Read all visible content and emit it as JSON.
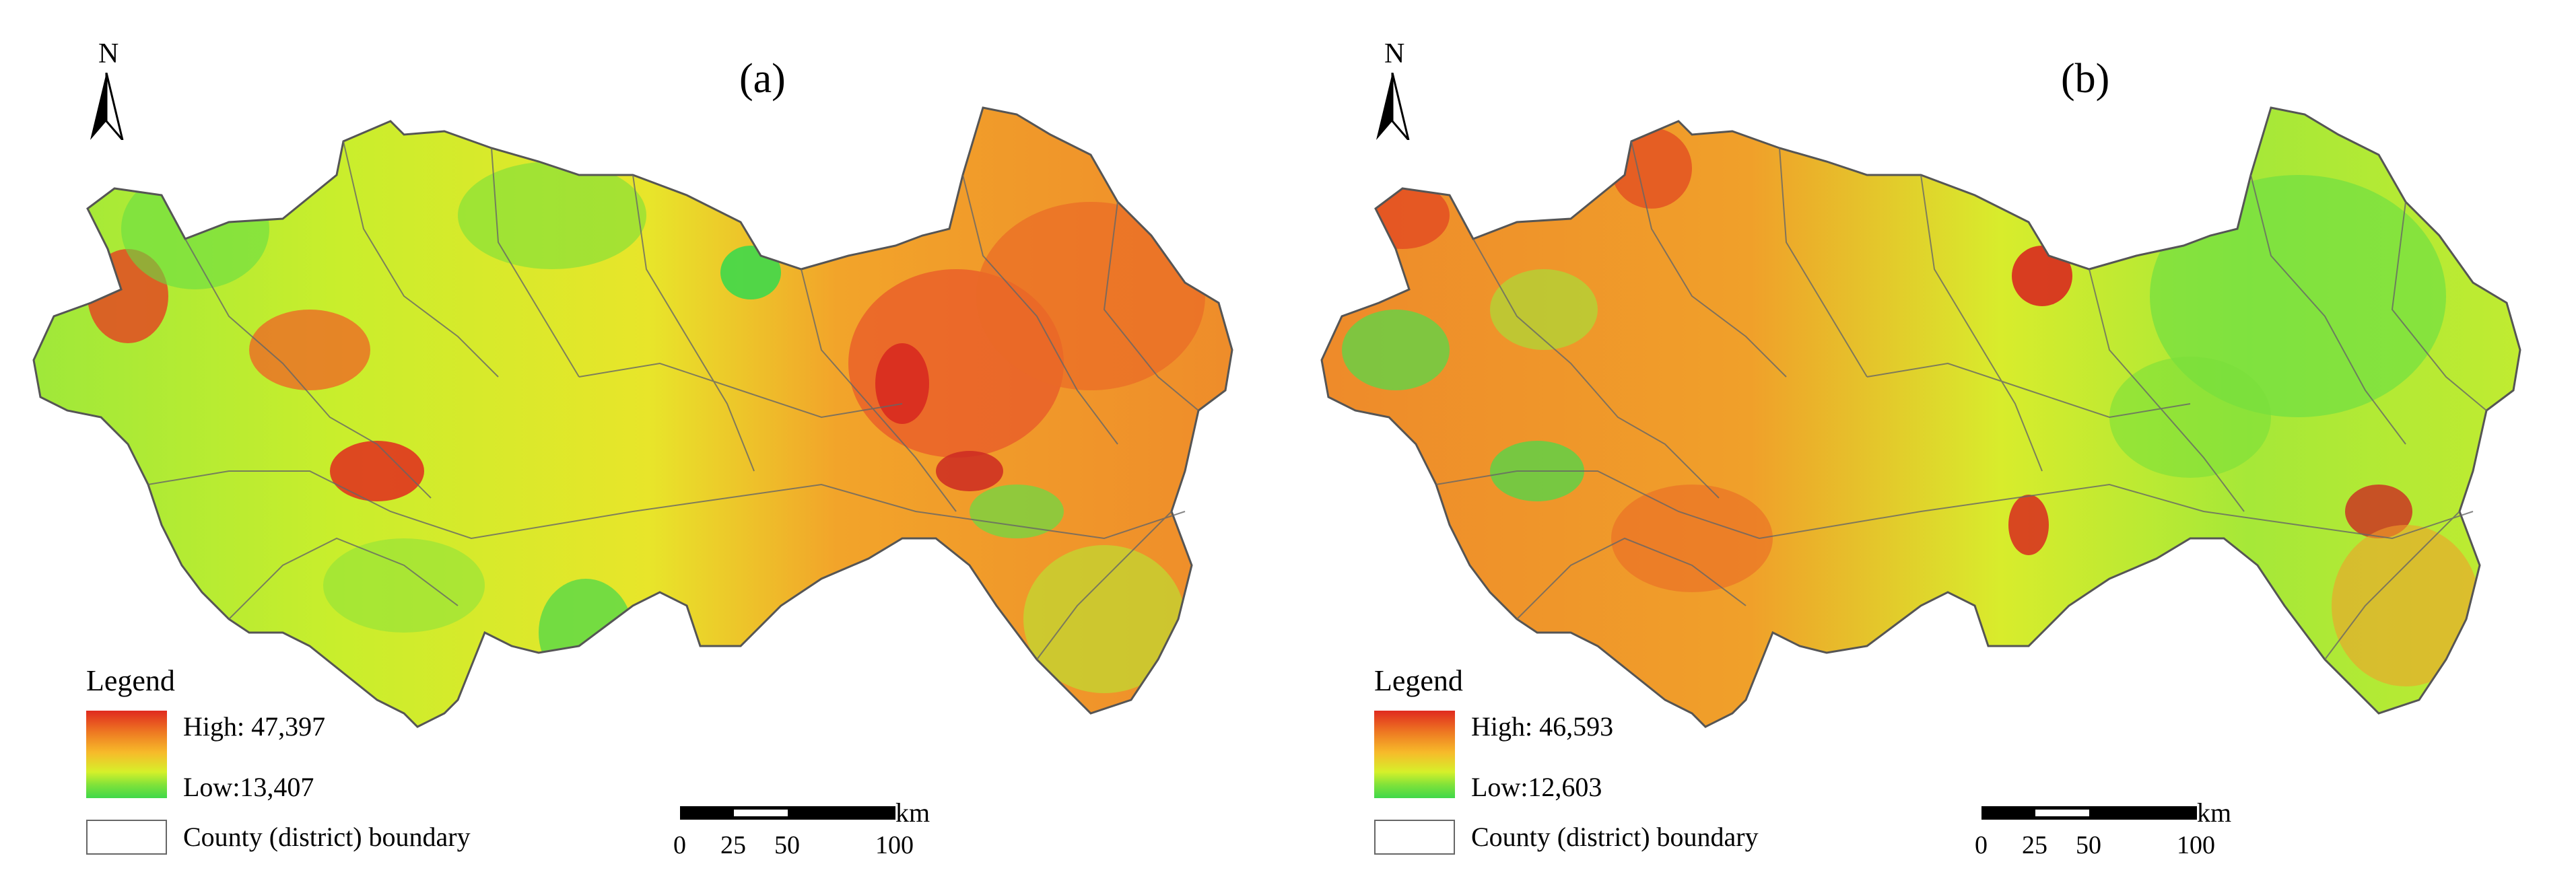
{
  "panels": [
    {
      "label": "(a)",
      "north": "N",
      "legend": {
        "title": "Legend",
        "high": "High: 47,397",
        "low": "Low:13,407",
        "boundary": "County (district) boundary"
      },
      "scale": {
        "unit": "km",
        "ticks": [
          "0",
          "25",
          "50",
          "100"
        ]
      },
      "ramp_colors": {
        "high": "#e02a1f",
        "mid": "#f7bb2a",
        "low": "#3fd84a"
      }
    },
    {
      "label": "(b)",
      "north": "N",
      "legend": {
        "title": "Legend",
        "high": "High: 46,593",
        "low": "Low:12,603",
        "boundary": "County (district) boundary"
      },
      "scale": {
        "unit": "km",
        "ticks": [
          "0",
          "25",
          "50",
          "100"
        ]
      },
      "ramp_colors": {
        "high": "#e02a1f",
        "mid": "#f7bb2a",
        "low": "#3fd84a"
      }
    }
  ]
}
